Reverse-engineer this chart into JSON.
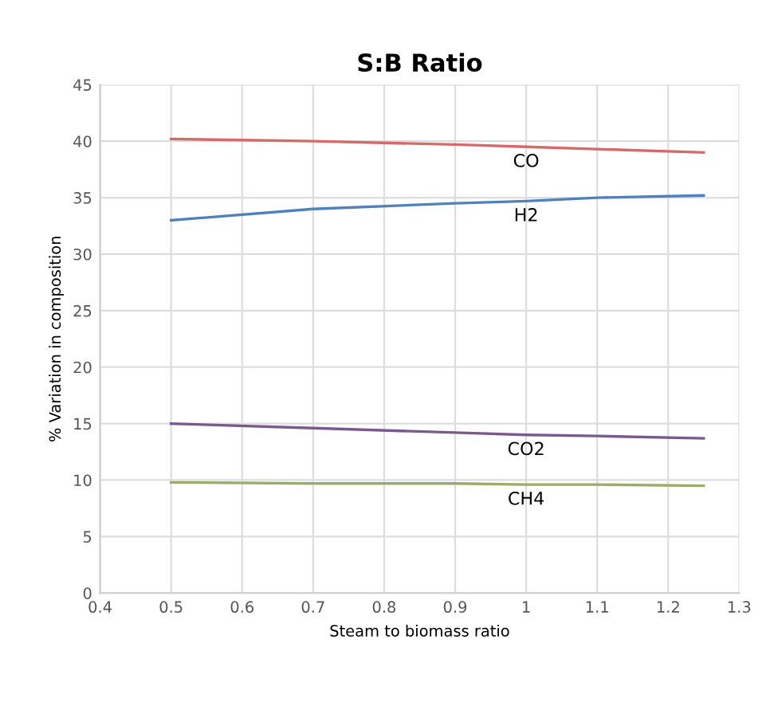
{
  "chart_data": {
    "type": "line",
    "title": "S:B Ratio",
    "xlabel": "Steam to biomass ratio",
    "ylabel": "% Variation in composition",
    "x": [
      0.5,
      0.7,
      0.9,
      1.0,
      1.1,
      1.25
    ],
    "series": [
      {
        "name": "CO",
        "color": "#d46a6a",
        "values": [
          40.2,
          40.0,
          39.7,
          39.5,
          39.3,
          39.0
        ]
      },
      {
        "name": "H2",
        "color": "#4f81bd",
        "values": [
          33.0,
          34.0,
          34.5,
          34.7,
          35.0,
          35.2
        ]
      },
      {
        "name": "CO2",
        "color": "#7a5a8c",
        "values": [
          15.0,
          14.6,
          14.2,
          14.0,
          13.9,
          13.7
        ]
      },
      {
        "name": "CH4",
        "color": "#9bab6a",
        "values": [
          9.8,
          9.7,
          9.7,
          9.6,
          9.6,
          9.5
        ]
      }
    ],
    "xlim": [
      0.4,
      1.3
    ],
    "xticks": [
      0.4,
      0.5,
      0.6,
      0.7,
      0.8,
      0.9,
      1,
      1.1,
      1.2,
      1.3
    ],
    "ylim": [
      0,
      45
    ],
    "yticks": [
      0,
      5,
      10,
      15,
      20,
      25,
      30,
      35,
      40,
      45
    ],
    "grid": true,
    "marker": "none",
    "line_style": "solid"
  }
}
